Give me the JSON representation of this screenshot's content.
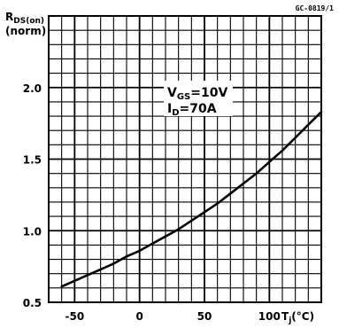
{
  "chart_data": {
    "type": "line",
    "reference": "GC-0819/1",
    "ylabel": {
      "main": "R",
      "sub": "DS(on)",
      "line2": "(norm)"
    },
    "xlabel": {
      "main": "T",
      "sub": "j",
      "unit": "(°C)"
    },
    "annotation": {
      "line1": {
        "main": "V",
        "sub": "GS",
        "rest": "=10V"
      },
      "line2": {
        "main": "I",
        "sub": "D",
        "rest": "=70A"
      }
    },
    "xlim": [
      -70,
      140
    ],
    "ylim": [
      0.5,
      2.5
    ],
    "xticks": [
      -50,
      0,
      50,
      100
    ],
    "yticks": [
      0.5,
      1.0,
      1.5,
      2.0
    ],
    "ytick_labels": [
      "0.5",
      "1.0",
      "1.5",
      "2.0"
    ],
    "grid": true,
    "series": [
      {
        "x": [
          -60,
          -50,
          -40,
          -30,
          -20,
          -10,
          0,
          10,
          20,
          30,
          40,
          50,
          60,
          70,
          80,
          90,
          100,
          110,
          120,
          130,
          140
        ],
        "y": [
          0.61,
          0.65,
          0.69,
          0.73,
          0.77,
          0.82,
          0.86,
          0.91,
          0.96,
          1.01,
          1.07,
          1.13,
          1.19,
          1.26,
          1.33,
          1.4,
          1.48,
          1.56,
          1.65,
          1.74,
          1.83
        ]
      }
    ]
  }
}
